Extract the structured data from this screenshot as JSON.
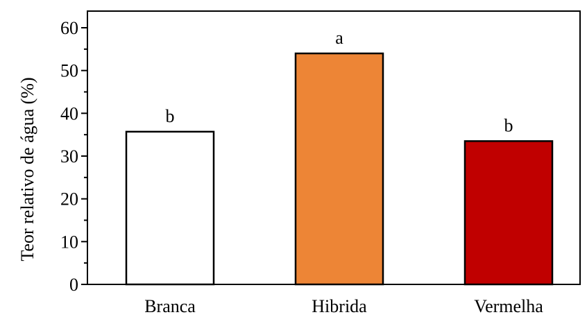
{
  "chart_data": {
    "type": "bar",
    "title": "",
    "xlabel": "",
    "ylabel": "Teor relativo de água (%)",
    "ylim": [
      0,
      60
    ],
    "yticks": [
      0,
      10,
      20,
      30,
      40,
      50,
      60
    ],
    "y_minor_step": 5,
    "grid": false,
    "categories": [
      "Branca",
      "Hibrida",
      "Vermelha"
    ],
    "values": [
      35.7,
      54,
      33.5
    ],
    "annotations": [
      "b",
      "a",
      "b"
    ],
    "colors": [
      "#ffffff",
      "#ed8536",
      "#c00000"
    ]
  }
}
